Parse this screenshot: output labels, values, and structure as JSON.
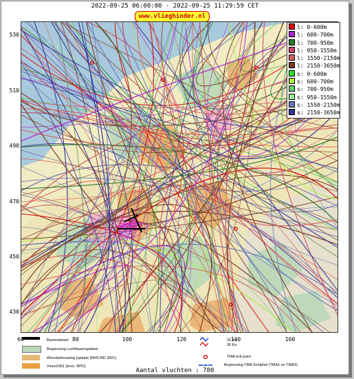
{
  "header": {
    "time_range": "2022-09-25 06:00:00 - 2022-09-25 11:29:59 CET",
    "site": "www.vlieghinder.nl"
  },
  "axes": {
    "y_ticks": [
      "530",
      "510",
      "490",
      "470",
      "450",
      "430"
    ],
    "x_ticks": [
      "60",
      "80",
      "100",
      "120",
      "140",
      "160"
    ]
  },
  "legend": [
    {
      "label": "l: 0-600m",
      "color": "#dd0000"
    },
    {
      "label": "l: 600-700m",
      "color": "#aa22cc"
    },
    {
      "label": "l: 700-950m",
      "color": "#2a7a2a"
    },
    {
      "label": "l: 950-1550m",
      "color": "#cc4466"
    },
    {
      "label": "l: 1550-2150m",
      "color": "#d85a5a"
    },
    {
      "label": "l: 2150-3650m",
      "color": "#7a3a22"
    },
    {
      "label": "s: 0-600m",
      "color": "#33dd33"
    },
    {
      "label": "s: 600-700m",
      "color": "#aaee44"
    },
    {
      "label": "s: 700-950m",
      "color": "#66cc66"
    },
    {
      "label": "s: 950-1550m",
      "color": "#99ee99"
    },
    {
      "label": "s: 1550-2150m",
      "color": "#6677bb"
    },
    {
      "label": "s: 2150-3650m",
      "color": "#333399"
    }
  ],
  "map_legend": {
    "runways": "Banenstelsel",
    "airport_boundary": "Begrenzing Luchthavengebied",
    "housing": "Woonbebouwing (update RWS-MD 2001)",
    "vinex": "Vinex2001 (bron: RPD)",
    "ke20": "20 Ke",
    "ke35": "35 Ke",
    "tma_exit": "TMA exit point",
    "tma_boundary": "Begrenzing TMA Schiphol  (TMA1 en TMA3)"
  },
  "footer": {
    "flight_count": "Aantal vluchten : 780"
  },
  "colors": {
    "land": "#f2ecc4",
    "water": "#a9c9dc",
    "urban": "#e9b777",
    "green": "#b9d9b9"
  }
}
